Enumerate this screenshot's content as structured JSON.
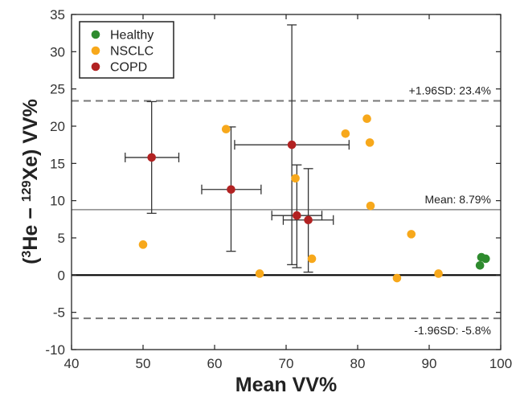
{
  "chart_data": {
    "type": "scatter",
    "title": "",
    "xlabel": "Mean VV%",
    "ylabel_parts": [
      "(",
      "3",
      "He − ",
      "129",
      "Xe) VV%"
    ],
    "xlim": [
      40,
      100
    ],
    "ylim": [
      -10,
      35
    ],
    "xticks": [
      40,
      50,
      60,
      70,
      80,
      90,
      100
    ],
    "yticks": [
      -10,
      -5,
      0,
      5,
      10,
      15,
      20,
      25,
      30,
      35
    ],
    "grid": false,
    "legend_position": "top-left",
    "reference_lines": [
      {
        "kind": "mean",
        "y": 8.79,
        "style": "solid",
        "color": "#888888",
        "label": "Mean: 8.79%"
      },
      {
        "kind": "upper-loa",
        "y": 23.4,
        "style": "dashed",
        "color": "#777777",
        "label": "+1.96SD: 23.4%"
      },
      {
        "kind": "lower-loa",
        "y": -5.8,
        "style": "dashed",
        "color": "#777777",
        "label": "-1.96SD: -5.8%"
      },
      {
        "kind": "zero",
        "y": 0,
        "style": "solid",
        "color": "#000000",
        "label": ""
      }
    ],
    "series": [
      {
        "name": "Healthy",
        "color": "#2e8b2e",
        "points": [
          {
            "x": 97.3,
            "y": 2.4
          },
          {
            "x": 97.9,
            "y": 2.2
          },
          {
            "x": 97.1,
            "y": 1.3
          }
        ]
      },
      {
        "name": "NSCLC",
        "color": "#f7a81b",
        "points": [
          {
            "x": 50.0,
            "y": 4.1
          },
          {
            "x": 61.6,
            "y": 19.6
          },
          {
            "x": 66.3,
            "y": 0.2
          },
          {
            "x": 71.3,
            "y": 13.0
          },
          {
            "x": 73.6,
            "y": 2.2
          },
          {
            "x": 78.3,
            "y": 19.0
          },
          {
            "x": 81.3,
            "y": 21.0
          },
          {
            "x": 81.7,
            "y": 17.8
          },
          {
            "x": 81.8,
            "y": 9.3
          },
          {
            "x": 85.5,
            "y": -0.4
          },
          {
            "x": 87.5,
            "y": 5.5
          },
          {
            "x": 91.3,
            "y": 0.2
          }
        ]
      },
      {
        "name": "COPD",
        "color": "#b22222",
        "points": [
          {
            "x": 51.2,
            "y": 15.8,
            "xerr": [
              47.5,
              55.0
            ],
            "yerr": [
              8.3,
              23.3
            ]
          },
          {
            "x": 62.3,
            "y": 11.5,
            "xerr": [
              58.2,
              66.5
            ],
            "yerr": [
              3.2,
              19.9
            ]
          },
          {
            "x": 70.8,
            "y": 17.5,
            "xerr": [
              62.8,
              78.8
            ],
            "yerr": [
              1.4,
              33.6
            ]
          },
          {
            "x": 71.5,
            "y": 8.0,
            "xerr": [
              68.0,
              75.0
            ],
            "yerr": [
              1.0,
              14.8
            ]
          },
          {
            "x": 73.1,
            "y": 7.4,
            "xerr": [
              69.6,
              76.6
            ],
            "yerr": [
              0.4,
              14.3
            ]
          }
        ]
      }
    ]
  }
}
